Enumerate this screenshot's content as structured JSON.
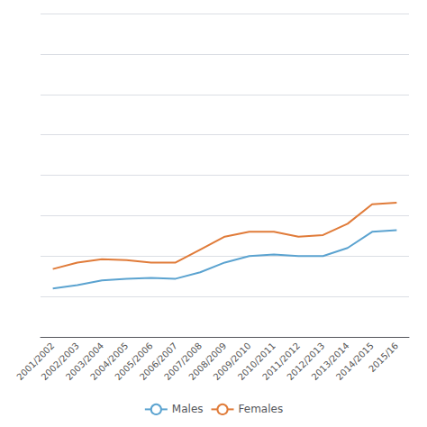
{
  "chart_data": {
    "type": "line",
    "categories": [
      "2001/2002",
      "2002/2003",
      "2003/2004",
      "2004/2005",
      "2005/2006",
      "2006/2007",
      "2007/2008",
      "2008/2009",
      "2009/2010",
      "2010/2011",
      "2011/2012",
      "2012/2013",
      "2013/2014",
      "2014/2015",
      "2015/16"
    ],
    "series": [
      {
        "name": "Males",
        "color": "#5ba3d0",
        "values": [
          30,
          32,
          35,
          36,
          36.5,
          36,
          40,
          46,
          50,
          51,
          50,
          50,
          55,
          65,
          66
        ]
      },
      {
        "name": "Females",
        "color": "#e07b39",
        "values": [
          42,
          46,
          48,
          47.5,
          46,
          46,
          54,
          62,
          65,
          65,
          62,
          63,
          70,
          82,
          83
        ]
      }
    ],
    "ylim": [
      0,
      200
    ],
    "yticks": [
      0,
      25,
      50,
      75,
      100,
      125,
      150,
      175,
      200
    ],
    "grid": true,
    "tick_labels": "x",
    "legend": "bottom"
  }
}
